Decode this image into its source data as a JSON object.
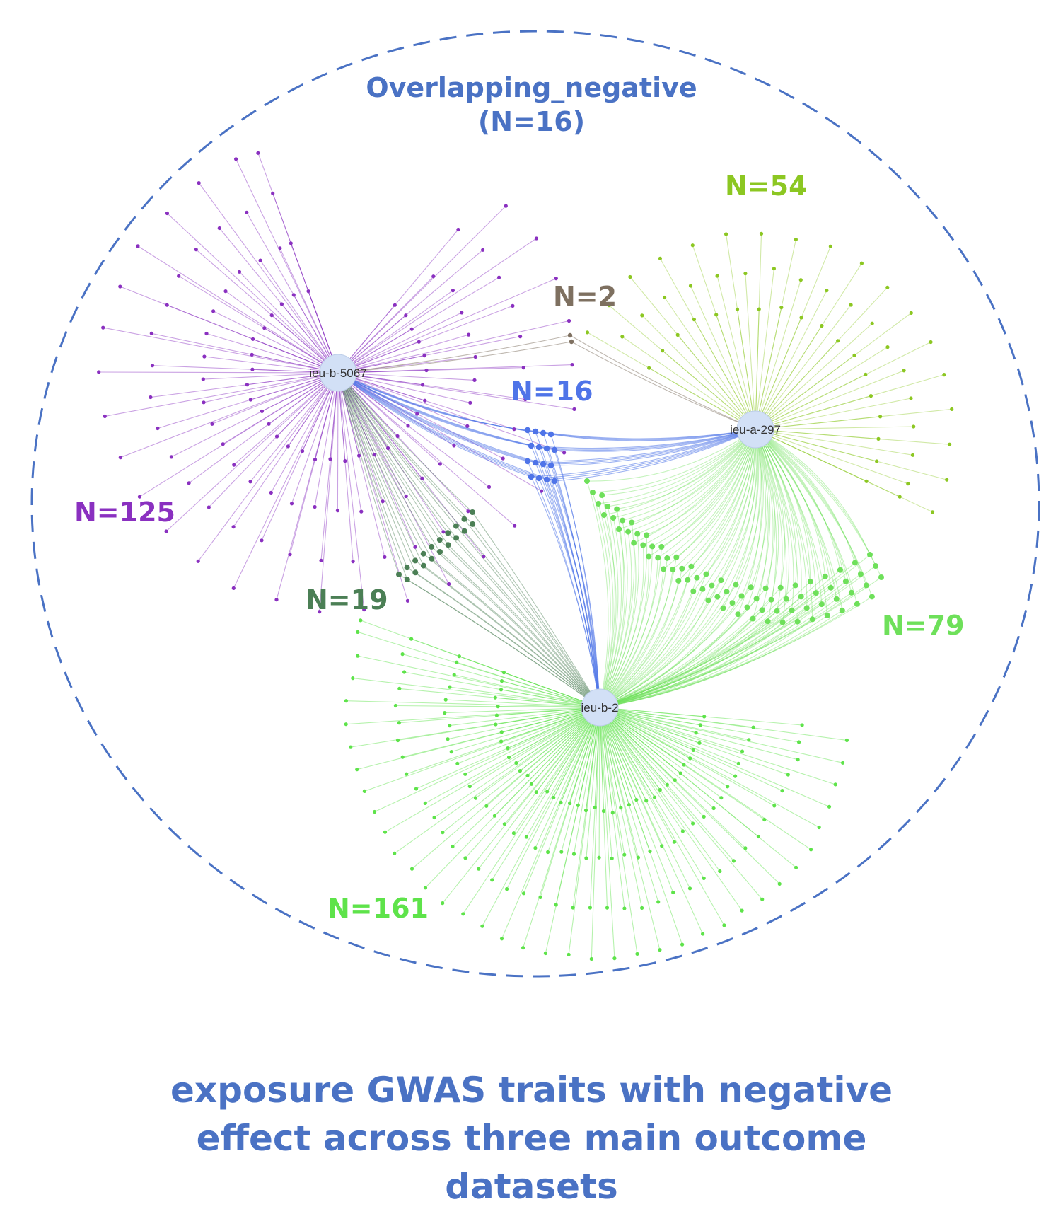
{
  "boundary": {
    "title": "Overlapping_negative",
    "subtitle": "(N=16)",
    "color": "#4a72c4"
  },
  "hubs": {
    "a": {
      "label": "ieu-b-5067"
    },
    "b": {
      "label": "ieu-a-297"
    },
    "c": {
      "label": "ieu-b-2"
    }
  },
  "groups": [
    {
      "id": "b5067_only",
      "count_label": "N=125",
      "count": 125,
      "color": "#8a30c0",
      "connects": [
        "ieu-b-5067"
      ]
    },
    {
      "id": "a297_only",
      "count_label": "N=54",
      "count": 54,
      "color": "#8cc722",
      "connects": [
        "ieu-a-297"
      ]
    },
    {
      "id": "b5067_a297",
      "count_label": "N=2",
      "count": 2,
      "color": "#7e7060",
      "connects": [
        "ieu-b-5067",
        "ieu-a-297"
      ]
    },
    {
      "id": "all_three",
      "count_label": "N=16",
      "count": 16,
      "color": "#4f74e8",
      "connects": [
        "ieu-b-5067",
        "ieu-a-297",
        "ieu-b-2"
      ]
    },
    {
      "id": "b5067_b2",
      "count_label": "N=19",
      "count": 19,
      "color": "#4b7f55",
      "connects": [
        "ieu-b-5067",
        "ieu-b-2"
      ]
    },
    {
      "id": "a297_b2",
      "count_label": "N=79",
      "count": 79,
      "color": "#6ee05a",
      "connects": [
        "ieu-a-297",
        "ieu-b-2"
      ]
    },
    {
      "id": "b2_only",
      "count_label": "N=161",
      "count": 161,
      "color": "#5ee34a",
      "connects": [
        "ieu-b-2"
      ]
    }
  ],
  "caption": {
    "line1": "exposure GWAS traits with negative",
    "line2": "effect across three main outcome",
    "line3": "datasets",
    "color": "#4a72c4"
  }
}
